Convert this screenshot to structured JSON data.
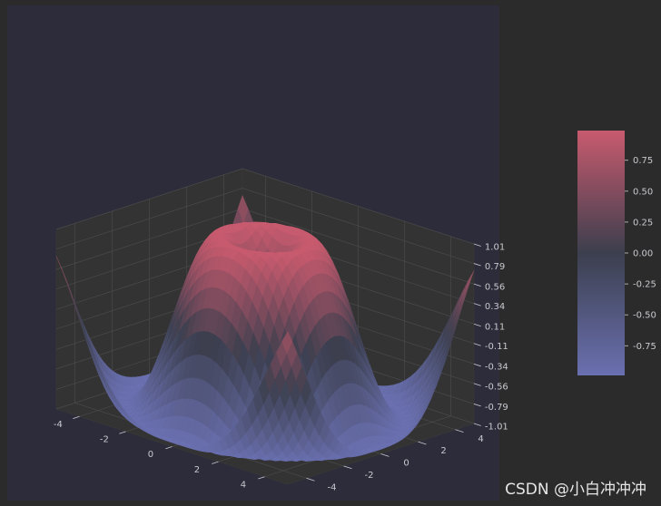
{
  "chart_data": {
    "type": "surface3d",
    "title": "",
    "function": "z = sin(sqrt(x^2 + y^2))",
    "x_range": [
      -5,
      5
    ],
    "y_range": [
      -5,
      5
    ],
    "x_ticks": [
      "-4",
      "-2",
      "0",
      "2",
      "4"
    ],
    "y_ticks": [
      "-4",
      "-2",
      "0",
      "2",
      "4"
    ],
    "z_ticks": [
      "-1.01",
      "-0.79",
      "-0.56",
      "-0.34",
      "-0.11",
      "0.11",
      "0.34",
      "0.56",
      "0.79",
      "1.01"
    ],
    "zlim": [
      -1.01,
      1.01
    ],
    "colormap": "coolwarm",
    "colorbar": {
      "range": [
        -0.99,
        0.99
      ],
      "ticks": [
        "-0.75",
        "-0.50",
        "-0.25",
        "0.00",
        "0.25",
        "0.50",
        "0.75"
      ],
      "tick_values": [
        -0.75,
        -0.5,
        -0.25,
        0.0,
        0.25,
        0.5,
        0.75
      ]
    },
    "grid": true
  },
  "colors": {
    "background": "#2b2b2b",
    "axes_face": "#2c2c3a",
    "pane": "#333333",
    "grid": "#4a4a4a",
    "cmap_low": "#6a70b0",
    "cmap_mid": "#3c3f4e",
    "cmap_high": "#c85a6e"
  },
  "watermark": "CSDN @小白冲冲冲"
}
